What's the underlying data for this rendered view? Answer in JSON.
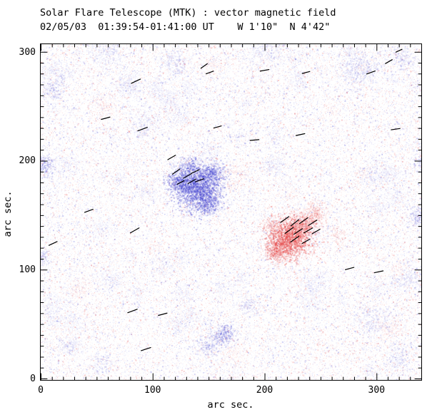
{
  "chart_data": {
    "type": "heatmap",
    "title": "Solar Flare Telescope (MTK) : vector magnetic field",
    "subtitle": "02/05/03  01:39:54-01:41:00 UT    W 1'10\"  N 4'42\"",
    "xlabel": "arc sec.",
    "ylabel": "arc sec.",
    "xlim": [
      0,
      340
    ],
    "ylim": [
      0,
      307
    ],
    "xticks": [
      0,
      100,
      200,
      300
    ],
    "yticks": [
      0,
      100,
      200,
      300
    ],
    "minor_tick_step": 10,
    "grid": false,
    "legend": "none",
    "polarity_colors": {
      "negative": "#4646d2",
      "positive": "#e64040"
    },
    "noise": {
      "seed": 42,
      "count": 55000,
      "blue_fraction": 0.56,
      "clouds": 90
    },
    "blobs": [
      {
        "x": 139,
        "y": 176,
        "r": 24,
        "polarity": "negative",
        "strength": 1.0
      },
      {
        "x": 124,
        "y": 182,
        "r": 13,
        "polarity": "negative",
        "strength": 0.7
      },
      {
        "x": 153,
        "y": 188,
        "r": 12,
        "polarity": "negative",
        "strength": 0.7
      },
      {
        "x": 149,
        "y": 161,
        "r": 13,
        "polarity": "negative",
        "strength": 0.7
      },
      {
        "x": 134,
        "y": 196,
        "r": 10,
        "polarity": "negative",
        "strength": 0.5
      },
      {
        "x": 163,
        "y": 41,
        "r": 12,
        "polarity": "negative",
        "strength": 0.55
      },
      {
        "x": 149,
        "y": 30,
        "r": 11,
        "polarity": "negative",
        "strength": 0.35
      },
      {
        "x": 2,
        "y": 197,
        "r": 11,
        "polarity": "negative",
        "strength": 0.5
      },
      {
        "x": 10,
        "y": 266,
        "r": 11,
        "polarity": "negative",
        "strength": 0.3
      },
      {
        "x": 2,
        "y": 113,
        "r": 9,
        "polarity": "negative",
        "strength": 0.25
      },
      {
        "x": 120,
        "y": 290,
        "r": 14,
        "polarity": "negative",
        "strength": 0.2
      },
      {
        "x": 283,
        "y": 284,
        "r": 22,
        "polarity": "negative",
        "strength": 0.22
      },
      {
        "x": 322,
        "y": 295,
        "r": 14,
        "polarity": "negative",
        "strength": 0.25
      },
      {
        "x": 338,
        "y": 150,
        "r": 11,
        "polarity": "negative",
        "strength": 0.45
      },
      {
        "x": 338,
        "y": 198,
        "r": 10,
        "polarity": "negative",
        "strength": 0.28
      },
      {
        "x": 330,
        "y": 92,
        "r": 14,
        "polarity": "negative",
        "strength": 0.2
      },
      {
        "x": 295,
        "y": 55,
        "r": 18,
        "polarity": "negative",
        "strength": 0.18
      },
      {
        "x": 320,
        "y": 22,
        "r": 13,
        "polarity": "negative",
        "strength": 0.18
      },
      {
        "x": 55,
        "y": 15,
        "r": 12,
        "polarity": "negative",
        "strength": 0.18
      },
      {
        "x": 24,
        "y": 30,
        "r": 10,
        "polarity": "negative",
        "strength": 0.16
      },
      {
        "x": 185,
        "y": 66,
        "r": 13,
        "polarity": "negative",
        "strength": 0.18
      },
      {
        "x": 300,
        "y": 188,
        "r": 16,
        "polarity": "negative",
        "strength": 0.15
      },
      {
        "x": 60,
        "y": 300,
        "r": 18,
        "polarity": "negative",
        "strength": 0.14
      },
      {
        "x": 200,
        "y": 300,
        "r": 22,
        "polarity": "negative",
        "strength": 0.12
      },
      {
        "x": 90,
        "y": 230,
        "r": 14,
        "polarity": "negative",
        "strength": 0.14
      },
      {
        "x": 222,
        "y": 129,
        "r": 22,
        "polarity": "positive",
        "strength": 1.0
      },
      {
        "x": 233,
        "y": 142,
        "r": 13,
        "polarity": "positive",
        "strength": 0.65
      },
      {
        "x": 210,
        "y": 118,
        "r": 12,
        "polarity": "positive",
        "strength": 0.6
      },
      {
        "x": 206,
        "y": 140,
        "r": 10,
        "polarity": "positive",
        "strength": 0.4
      },
      {
        "x": 244,
        "y": 148,
        "r": 11,
        "polarity": "positive",
        "strength": 0.4
      },
      {
        "x": 247,
        "y": 158,
        "r": 9,
        "polarity": "positive",
        "strength": 0.25
      },
      {
        "x": 264,
        "y": 133,
        "r": 10,
        "polarity": "positive",
        "strength": 0.2
      }
    ],
    "vectors": [
      {
        "x": 85,
        "y": 273,
        "angle": 25,
        "len": 9
      },
      {
        "x": 146,
        "y": 287,
        "angle": 35,
        "len": 7
      },
      {
        "x": 151,
        "y": 281,
        "angle": 20,
        "len": 7
      },
      {
        "x": 200,
        "y": 283,
        "angle": 10,
        "len": 8
      },
      {
        "x": 237,
        "y": 281,
        "angle": 15,
        "len": 7
      },
      {
        "x": 295,
        "y": 281,
        "angle": 20,
        "len": 8
      },
      {
        "x": 311,
        "y": 291,
        "angle": 30,
        "len": 7
      },
      {
        "x": 320,
        "y": 301,
        "angle": 25,
        "len": 6
      },
      {
        "x": 58,
        "y": 239,
        "angle": 15,
        "len": 8
      },
      {
        "x": 91,
        "y": 229,
        "angle": 20,
        "len": 9
      },
      {
        "x": 158,
        "y": 231,
        "angle": 15,
        "len": 7
      },
      {
        "x": 191,
        "y": 219,
        "angle": 5,
        "len": 8
      },
      {
        "x": 232,
        "y": 224,
        "angle": 12,
        "len": 8
      },
      {
        "x": 317,
        "y": 229,
        "angle": 8,
        "len": 8
      },
      {
        "x": 117,
        "y": 203,
        "angle": 30,
        "len": 8
      },
      {
        "x": 121,
        "y": 190,
        "angle": 35,
        "len": 8
      },
      {
        "x": 131,
        "y": 186,
        "angle": 30,
        "len": 8
      },
      {
        "x": 138,
        "y": 190,
        "angle": 25,
        "len": 8
      },
      {
        "x": 135,
        "y": 181,
        "angle": 30,
        "len": 8
      },
      {
        "x": 142,
        "y": 182,
        "angle": 20,
        "len": 8
      },
      {
        "x": 125,
        "y": 180,
        "angle": 28,
        "len": 7
      },
      {
        "x": 43,
        "y": 154,
        "angle": 20,
        "len": 8
      },
      {
        "x": 84,
        "y": 136,
        "angle": 30,
        "len": 9
      },
      {
        "x": 11,
        "y": 124,
        "angle": 25,
        "len": 8
      },
      {
        "x": 218,
        "y": 146,
        "angle": 35,
        "len": 9
      },
      {
        "x": 227,
        "y": 143,
        "angle": 38,
        "len": 9
      },
      {
        "x": 235,
        "y": 145,
        "angle": 35,
        "len": 9
      },
      {
        "x": 243,
        "y": 143,
        "angle": 32,
        "len": 9
      },
      {
        "x": 222,
        "y": 136,
        "angle": 36,
        "len": 9
      },
      {
        "x": 230,
        "y": 135,
        "angle": 33,
        "len": 9
      },
      {
        "x": 239,
        "y": 136,
        "angle": 30,
        "len": 9
      },
      {
        "x": 246,
        "y": 135,
        "angle": 30,
        "len": 8
      },
      {
        "x": 227,
        "y": 128,
        "angle": 35,
        "len": 9
      },
      {
        "x": 237,
        "y": 126,
        "angle": 30,
        "len": 8
      },
      {
        "x": 276,
        "y": 101,
        "angle": 15,
        "len": 8
      },
      {
        "x": 302,
        "y": 98,
        "angle": 12,
        "len": 8
      },
      {
        "x": 82,
        "y": 62,
        "angle": 20,
        "len": 9
      },
      {
        "x": 109,
        "y": 59,
        "angle": 15,
        "len": 8
      },
      {
        "x": 94,
        "y": 27,
        "angle": 18,
        "len": 9
      }
    ]
  }
}
